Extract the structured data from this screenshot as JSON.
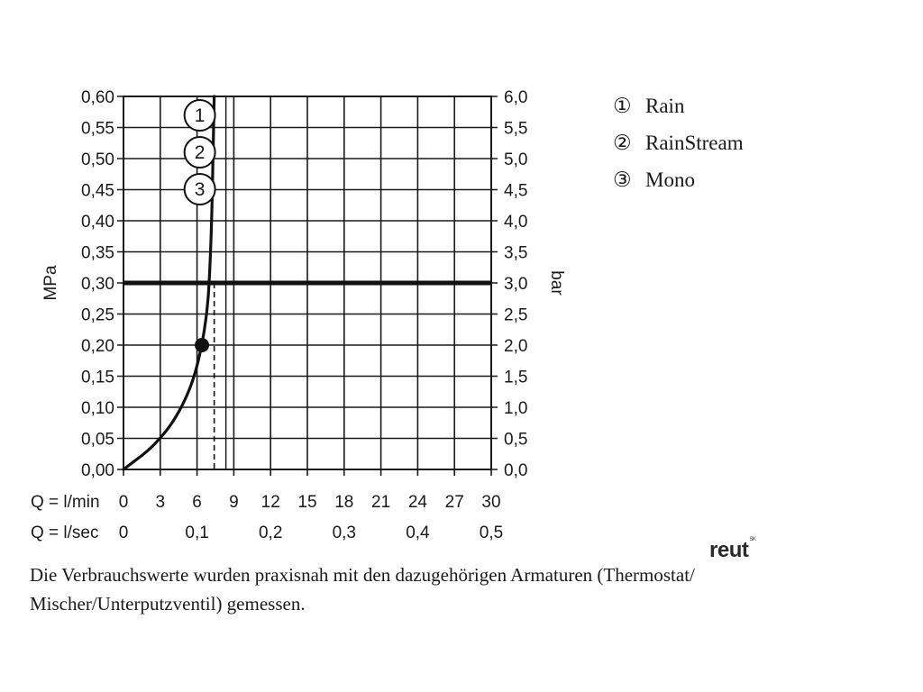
{
  "chart_data": {
    "type": "line",
    "ylabel_left": "MPa",
    "ylabel_right": "bar",
    "y_left_ticks": [
      "0,00",
      "0,05",
      "0,10",
      "0,15",
      "0,20",
      "0,25",
      "0,30",
      "0,35",
      "0,40",
      "0,45",
      "0,50",
      "0,55",
      "0,60"
    ],
    "y_right_ticks": [
      "0,0",
      "0,5",
      "1,0",
      "1,5",
      "2,0",
      "2,5",
      "3,0",
      "3,5",
      "4,0",
      "4,5",
      "5,0",
      "5,5",
      "6,0"
    ],
    "ylim": [
      0,
      0.6
    ],
    "x_rows": [
      {
        "label": "Q = l/min",
        "ticks": [
          "0",
          "3",
          "6",
          "9",
          "12",
          "15",
          "18",
          "21",
          "24",
          "27",
          "30"
        ],
        "values": [
          0,
          3,
          6,
          9,
          12,
          15,
          18,
          21,
          24,
          27,
          30
        ]
      },
      {
        "label": "Q = l/sec",
        "ticks": [
          "0",
          "0,1",
          "0,2",
          "0,3",
          "0,4",
          "0,5"
        ],
        "values": [
          0,
          6,
          12,
          18,
          24,
          30
        ]
      }
    ],
    "xlim": [
      0,
      30
    ],
    "grid": true,
    "reference_pressure_MPa": 0.3,
    "series": [
      {
        "points": [
          [
            0,
            0
          ],
          [
            1,
            0.015
          ],
          [
            2,
            0.03
          ],
          [
            3,
            0.05
          ],
          [
            4,
            0.075
          ],
          [
            5,
            0.11
          ],
          [
            5.8,
            0.15
          ],
          [
            6.4,
            0.2
          ],
          [
            6.8,
            0.25
          ],
          [
            7.0,
            0.3
          ],
          [
            7.2,
            0.4
          ],
          [
            7.3,
            0.5
          ],
          [
            7.4,
            0.6
          ]
        ]
      }
    ],
    "operating_point": {
      "x": 6.4,
      "y": 0.2
    },
    "dashed_flow_x": 7.4,
    "curve_markers": [
      "1",
      "2",
      "3"
    ]
  },
  "legend": {
    "items": [
      {
        "symbol": "①",
        "label": "Rain"
      },
      {
        "symbol": "②",
        "label": "RainStream"
      },
      {
        "symbol": "③",
        "label": "Mono"
      }
    ]
  },
  "note": {
    "line1": "Die Verbrauchswerte wurden praxisnah mit den dazugehörigen Armaturen (Thermostat/",
    "line2": "Mischer/Unterputzventil) gemessen."
  },
  "logo": {
    "text": "reut",
    "suffix": "SK"
  }
}
